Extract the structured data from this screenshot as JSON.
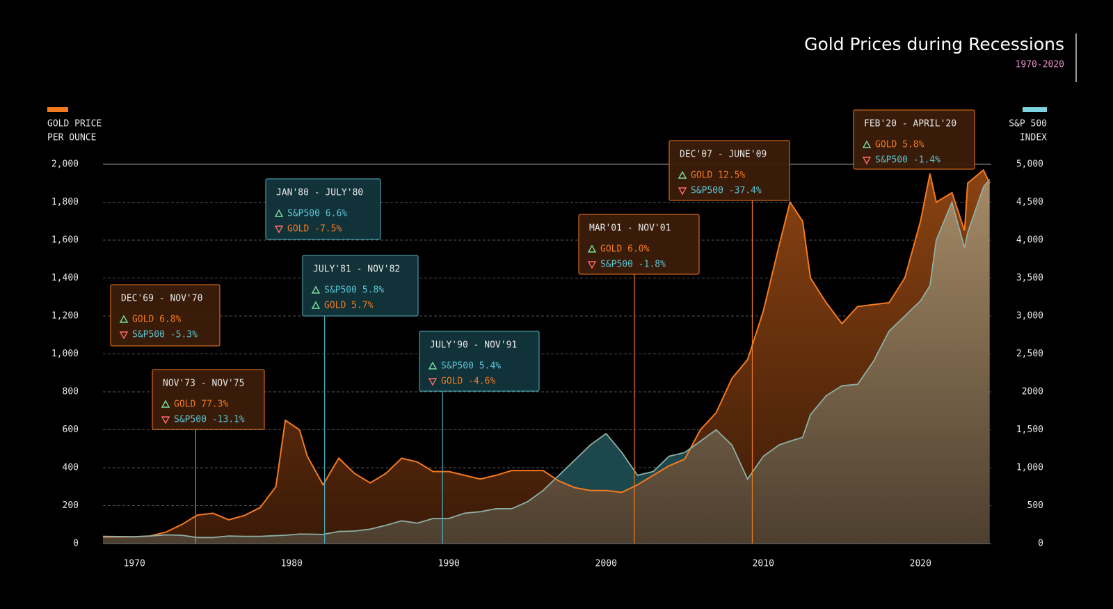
{
  "chart_data": {
    "type": "area",
    "title": "Gold Prices during Recessions",
    "subtitle": "1970-2020",
    "y_label": [
      "GOLD PRICE",
      "PER OUNCE"
    ],
    "y2_label": [
      "S&P 500",
      "INDEX"
    ],
    "xlim": [
      1968,
      2024.5
    ],
    "xticks": [
      1970,
      1980,
      1990,
      2000,
      2010,
      2020
    ],
    "ylim": [
      0,
      2000
    ],
    "yticks": [
      0,
      200,
      400,
      600,
      800,
      {
        "value": 1000,
        "label": "1,000"
      },
      {
        "value": 1200,
        "label": "1,200"
      },
      {
        "value": 1400,
        "label": "1,400"
      },
      {
        "value": 1600,
        "label": "1,600"
      },
      {
        "value": 1800,
        "label": "1,800"
      },
      {
        "value": 2000,
        "label": "2,000"
      }
    ],
    "y2lim": [
      0,
      5000
    ],
    "y2ticks": [
      0,
      500,
      {
        "value": 1000,
        "label": "1,000"
      },
      {
        "value": 1500,
        "label": "1,500"
      },
      2000,
      {
        "value": 2500,
        "label": "2,500"
      },
      {
        "value": 3000,
        "label": "3,000"
      },
      {
        "value": 3500,
        "label": "3,500"
      },
      {
        "value": 4000,
        "label": "4,000"
      },
      {
        "value": 4500,
        "label": "4,500"
      },
      {
        "value": 5000,
        "label": "5,000"
      }
    ],
    "grid": true,
    "x": [
      1968,
      1970,
      1971,
      1972,
      1973,
      1974,
      1975,
      1976,
      1977,
      1978,
      1979,
      1979.6,
      1980.5,
      1981,
      1982,
      1983,
      1984,
      1985,
      1986,
      1987,
      1988,
      1989,
      1990,
      1991,
      1992,
      1993,
      1994,
      1995,
      1996,
      1997,
      1998,
      1999,
      2000,
      2001,
      2002,
      2003,
      2004,
      2005,
      2006,
      2007,
      2008,
      2009,
      2010,
      2011,
      2011.7,
      2012.5,
      2013,
      2014,
      2015,
      2016,
      2017,
      2018,
      2019,
      2020,
      2020.6,
      2021,
      2022,
      2022.8,
      2023,
      2024,
      2024.4
    ],
    "series": [
      {
        "axis": "y",
        "color": "#f47a20",
        "values": [
          35,
          36,
          40,
          60,
          100,
          150,
          160,
          125,
          148,
          190,
          300,
          650,
          600,
          460,
          310,
          450,
          370,
          320,
          370,
          450,
          430,
          380,
          380,
          360,
          340,
          360,
          385,
          385,
          385,
          330,
          295,
          280,
          280,
          270,
          310,
          360,
          410,
          445,
          600,
          690,
          870,
          970,
          1225,
          1570,
          1800,
          1700,
          1400,
          1270,
          1160,
          1250,
          1260,
          1270,
          1400,
          1700,
          1950,
          1800,
          1850,
          1650,
          1900,
          1970,
          1900
        ]
      },
      {
        "axis": "y2",
        "color": "#8fb0a6",
        "values": [
          95,
          90,
          100,
          115,
          110,
          80,
          80,
          100,
          95,
          95,
          105,
          110,
          125,
          125,
          120,
          160,
          165,
          190,
          240,
          300,
          270,
          330,
          330,
          400,
          420,
          460,
          460,
          550,
          700,
          900,
          1100,
          1300,
          1450,
          1200,
          900,
          950,
          1150,
          1200,
          1350,
          1500,
          1300,
          850,
          1150,
          1300,
          1350,
          1400,
          1700,
          1950,
          2080,
          2100,
          2400,
          2800,
          3000,
          3200,
          3400,
          4000,
          4500,
          3900,
          4100,
          4700,
          4800
        ]
      }
    ],
    "annotations": [
      {
        "label": "DEC'69 - NOV'70",
        "color": "#f47a20",
        "items": [
          {
            "dir": "up",
            "text": "GOLD 6.8%",
            "color": "#f47a20"
          },
          {
            "dir": "down",
            "text": "S&P500 -5.3%",
            "color": "#5cc3d6"
          }
        ]
      },
      {
        "label": "NOV'73 - NOV'75",
        "color": "#f47a20",
        "x": 1973.9,
        "items": [
          {
            "dir": "up",
            "text": "GOLD 77.3%",
            "color": "#f47a20"
          },
          {
            "dir": "down",
            "text": "S&P500 -13.1%",
            "color": "#5cc3d6"
          }
        ]
      },
      {
        "label": "JAN'80 - JULY'80",
        "color": "#4fb3c4",
        "items": [
          {
            "dir": "up",
            "text": "S&P500 6.6%",
            "color": "#5cc3d6"
          },
          {
            "dir": "down",
            "text": "GOLD -7.5%",
            "color": "#f47a20"
          }
        ]
      },
      {
        "label": "JULY'81 - NOV'82",
        "color": "#4fb3c4",
        "x": 1982.1,
        "items": [
          {
            "dir": "up",
            "text": "S&P500 5.8%",
            "color": "#5cc3d6"
          },
          {
            "dir": "up",
            "text": "GOLD 5.7%",
            "color": "#f47a20"
          }
        ]
      },
      {
        "label": "JULY'90 - NOV'91",
        "color": "#4fb3c4",
        "x": 1989.6,
        "items": [
          {
            "dir": "up",
            "text": "S&P500 5.4%",
            "color": "#5cc3d6"
          },
          {
            "dir": "down",
            "text": "GOLD -4.6%",
            "color": "#f47a20"
          }
        ]
      },
      {
        "label": "MAR'01 - NOV'01",
        "color": "#f47a20",
        "x": 2001.8,
        "items": [
          {
            "dir": "up",
            "text": "GOLD 6.0%",
            "color": "#f47a20"
          },
          {
            "dir": "down",
            "text": "S&P500 -1.8%",
            "color": "#5cc3d6"
          }
        ]
      },
      {
        "label": "DEC'07 - JUNE'09",
        "color": "#f47a20",
        "x": 2009.3,
        "items": [
          {
            "dir": "up",
            "text": "GOLD 12.5%",
            "color": "#f47a20"
          },
          {
            "dir": "down",
            "text": "S&P500 -37.4%",
            "color": "#5cc3d6"
          }
        ]
      },
      {
        "label": "FEB'20 - APRIL'20",
        "color": "#f47a20",
        "items": [
          {
            "dir": "up",
            "text": "GOLD 5.8%",
            "color": "#f47a20"
          },
          {
            "dir": "down",
            "text": "S&P500 -1.4%",
            "color": "#5cc3d6"
          }
        ]
      }
    ]
  }
}
